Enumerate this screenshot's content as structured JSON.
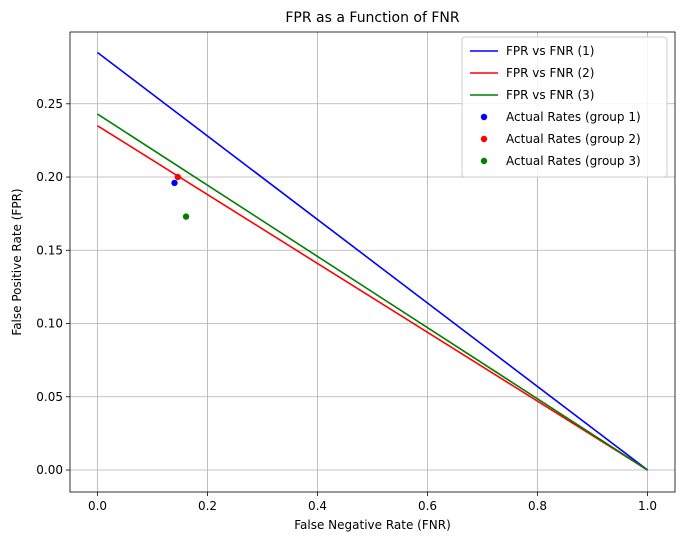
{
  "chart_data": {
    "type": "line",
    "title": "FPR as a Function of FNR",
    "xlabel": "False Negative Rate (FNR)",
    "ylabel": "False Positive Rate (FPR)",
    "xlim": [
      -0.05,
      1.05
    ],
    "ylim": [
      -0.015,
      0.299
    ],
    "xticks": [
      0.0,
      0.2,
      0.4,
      0.6,
      0.8,
      1.0
    ],
    "xtick_labels": [
      "0.0",
      "0.2",
      "0.4",
      "0.6",
      "0.8",
      "1.0"
    ],
    "yticks": [
      0.0,
      0.05,
      0.1,
      0.15,
      0.2,
      0.25
    ],
    "ytick_labels": [
      "0.00",
      "0.05",
      "0.10",
      "0.15",
      "0.20",
      "0.25"
    ],
    "grid": true,
    "legend_position": "top-right",
    "series": [
      {
        "name": "FPR vs FNR (1)",
        "kind": "line",
        "color": "#0000ff",
        "x": [
          0.0,
          1.0
        ],
        "y": [
          0.285,
          0.0
        ]
      },
      {
        "name": "FPR vs FNR (2)",
        "kind": "line",
        "color": "#ff0000",
        "x": [
          0.0,
          1.0
        ],
        "y": [
          0.235,
          0.0
        ]
      },
      {
        "name": "FPR vs FNR (3)",
        "kind": "line",
        "color": "#008000",
        "x": [
          0.0,
          1.0
        ],
        "y": [
          0.243,
          0.0
        ]
      },
      {
        "name": "Actual Rates (group 1)",
        "kind": "scatter",
        "color": "#0000ff",
        "x": [
          0.14
        ],
        "y": [
          0.196
        ]
      },
      {
        "name": "Actual Rates (group 2)",
        "kind": "scatter",
        "color": "#ff0000",
        "x": [
          0.146
        ],
        "y": [
          0.2
        ]
      },
      {
        "name": "Actual Rates (group 3)",
        "kind": "scatter",
        "color": "#008000",
        "x": [
          0.161
        ],
        "y": [
          0.173
        ]
      }
    ]
  }
}
